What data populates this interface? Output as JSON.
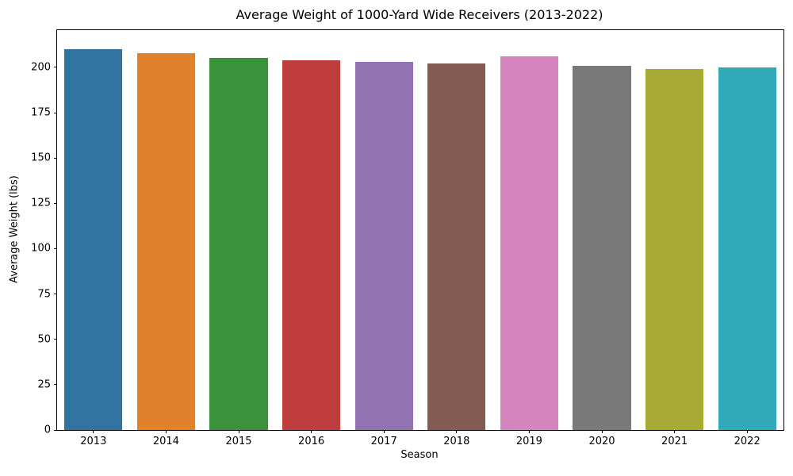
{
  "chart_data": {
    "type": "bar",
    "title": "Average Weight of 1000-Yard Wide Receivers (2013-2022)",
    "xlabel": "Season",
    "ylabel": "Average Weight (lbs)",
    "categories": [
      "2013",
      "2014",
      "2015",
      "2016",
      "2017",
      "2018",
      "2019",
      "2020",
      "2021",
      "2022"
    ],
    "values": [
      210,
      208,
      205,
      204,
      203,
      202,
      206,
      201,
      199,
      200
    ],
    "bar_colors": [
      "#3274a1",
      "#e1812c",
      "#3a923a",
      "#c03d3e",
      "#9372b2",
      "#845b53",
      "#d684bd",
      "#797979",
      "#a9aa35",
      "#32a9b8"
    ],
    "ylim": [
      0,
      220.5
    ],
    "yticks": [
      0,
      25,
      50,
      75,
      100,
      125,
      150,
      175,
      200
    ],
    "grid": false,
    "legend": null,
    "bar_width_fraction": 0.8,
    "background_color": "#ffffff",
    "spine_color": "#000000",
    "text_color": "#000000"
  }
}
